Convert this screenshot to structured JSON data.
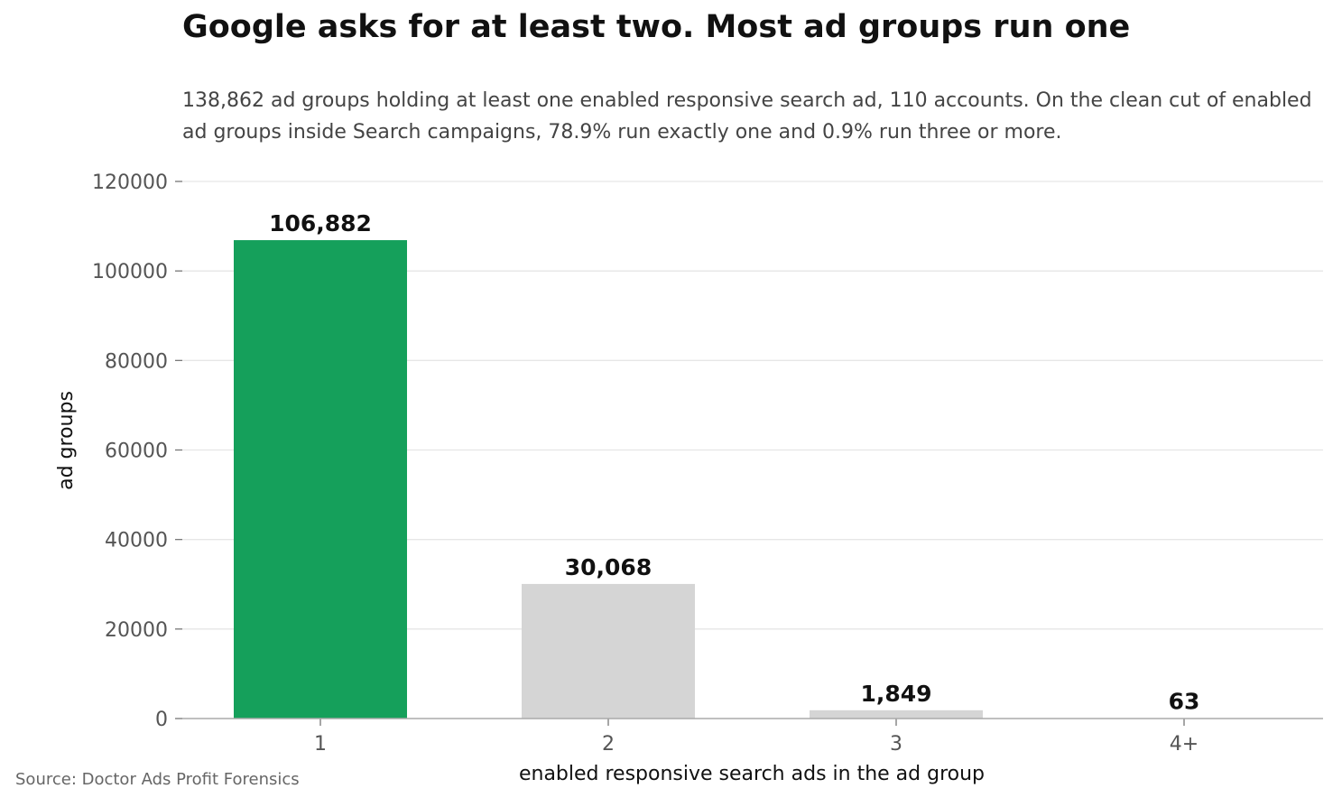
{
  "chart_data": {
    "type": "bar",
    "title": "Google asks for at least two. Most ad groups run one",
    "subtitle": "138,862 ad groups holding at least one enabled responsive search ad, 110 accounts. On the clean cut of enabled ad groups inside Search campaigns, 78.9% run exactly one and 0.9% run three or more.",
    "xlabel": "enabled responsive search ads in the ad group",
    "ylabel": "ad groups",
    "categories": [
      "1",
      "2",
      "3",
      "4+"
    ],
    "values": [
      106882,
      30068,
      1849,
      63
    ],
    "data_labels": [
      "106,882",
      "30,068",
      "1,849",
      "63"
    ],
    "ylim": [
      0,
      120000
    ],
    "yticks": [
      0,
      20000,
      40000,
      60000,
      80000,
      100000,
      120000
    ],
    "ytick_labels": [
      "0",
      "20000",
      "40000",
      "60000",
      "80000",
      "100000",
      "120000"
    ],
    "grid": true,
    "legend": "none",
    "colors": {
      "highlight": "#15A05B",
      "muted": "#D5D5D5",
      "grid": "#E6E6E6",
      "axis": "#AAAAAA",
      "highlight_index": 0
    },
    "source": "Source: Doctor Ads Profit Forensics"
  }
}
